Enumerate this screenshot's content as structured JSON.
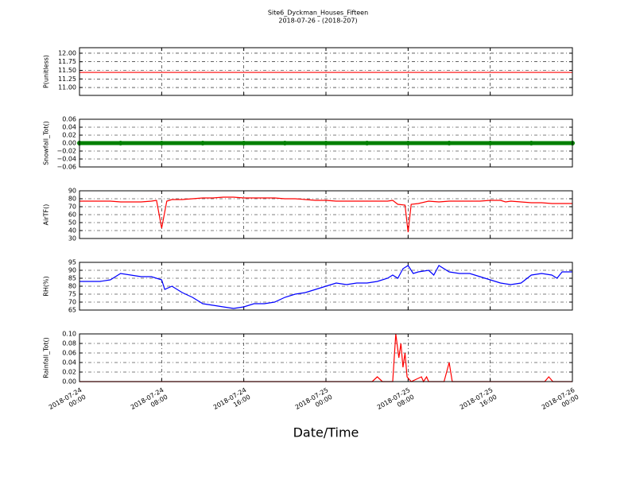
{
  "title": "Site6_Dyckman_Houses_Fifteen",
  "subtitle": "2018-07-26 - (2018-207)",
  "x_axis": {
    "label": "Date/Time",
    "xlim": [
      "2018-07-24 00:00",
      "2018-07-26 00:00"
    ],
    "xticks": [
      "2018-07-24 00:00",
      "2018-07-24 08:00",
      "2018-07-24 16:00",
      "2018-07-25 00:00",
      "2018-07-25 08:00",
      "2018-07-25 16:00",
      "2018-07-26 00:00"
    ]
  },
  "chart_data": [
    {
      "type": "line",
      "ylabel": "P(unitless)",
      "color": "#ff0000",
      "grid": true,
      "ylim": [
        10.77,
        12.16
      ],
      "yticks": [
        {
          "value": 11,
          "label": "11.00"
        },
        {
          "value": 11.25,
          "label": "11.25"
        },
        {
          "value": 11.5,
          "label": "11.50"
        },
        {
          "value": 11.75,
          "label": "11.75"
        },
        {
          "value": 12,
          "label": "12.00"
        }
      ],
      "x": [
        "2018-07-24 00:00",
        "2018-07-26 00:00"
      ],
      "values": [
        11.44,
        11.44
      ]
    },
    {
      "type": "line",
      "ylabel": "Snowfall_Tot()",
      "color": "#008000",
      "grid": true,
      "marker": "o",
      "ylim": [
        -0.06,
        0.06
      ],
      "yticks": [
        {
          "value": -0.06,
          "label": "−0.06"
        },
        {
          "value": -0.04,
          "label": "−0.04"
        },
        {
          "value": -0.02,
          "label": "−0.02"
        },
        {
          "value": 0,
          "label": "0.00"
        },
        {
          "value": 0.02,
          "label": "0.02"
        },
        {
          "value": 0.04,
          "label": "0.04"
        },
        {
          "value": 0.06,
          "label": "0.06"
        }
      ],
      "x": [
        "2018-07-24 00:00",
        "2018-07-24 04:00",
        "2018-07-24 08:00",
        "2018-07-24 12:00",
        "2018-07-24 16:00",
        "2018-07-24 20:00",
        "2018-07-25 00:00",
        "2018-07-25 04:00",
        "2018-07-25 08:00",
        "2018-07-25 12:00",
        "2018-07-25 16:00",
        "2018-07-25 20:00",
        "2018-07-26 00:00"
      ],
      "values": [
        0,
        0,
        0,
        0,
        0,
        0,
        0,
        0,
        0,
        0,
        0,
        0,
        0
      ]
    },
    {
      "type": "line",
      "ylabel": "AirTF()",
      "color": "#ff0000",
      "grid": true,
      "ylim": [
        30,
        90
      ],
      "yticks": [
        30,
        40,
        50,
        60,
        70,
        80,
        90
      ],
      "x": [
        "2018-07-24 00:00",
        "2018-07-24 01:00",
        "2018-07-24 02:00",
        "2018-07-24 03:00",
        "2018-07-24 04:00",
        "2018-07-24 05:00",
        "2018-07-24 06:00",
        "2018-07-24 07:00",
        "2018-07-24 07:30",
        "2018-07-24 08:00",
        "2018-07-24 08:30",
        "2018-07-24 09:00",
        "2018-07-24 10:00",
        "2018-07-24 11:00",
        "2018-07-24 12:00",
        "2018-07-24 13:00",
        "2018-07-24 14:00",
        "2018-07-24 15:00",
        "2018-07-24 16:00",
        "2018-07-24 17:00",
        "2018-07-24 18:00",
        "2018-07-24 19:00",
        "2018-07-24 20:00",
        "2018-07-24 21:00",
        "2018-07-24 22:00",
        "2018-07-24 23:00",
        "2018-07-25 00:00",
        "2018-07-25 01:00",
        "2018-07-25 02:00",
        "2018-07-25 03:00",
        "2018-07-25 04:00",
        "2018-07-25 05:00",
        "2018-07-25 06:00",
        "2018-07-25 06:30",
        "2018-07-25 07:00",
        "2018-07-25 07:42",
        "2018-07-25 08:00",
        "2018-07-25 08:18",
        "2018-07-25 09:00",
        "2018-07-25 10:00",
        "2018-07-25 11:00",
        "2018-07-25 12:00",
        "2018-07-25 13:00",
        "2018-07-25 14:00",
        "2018-07-25 15:00",
        "2018-07-25 16:00",
        "2018-07-25 17:00",
        "2018-07-25 17:30",
        "2018-07-25 18:00",
        "2018-07-25 19:00",
        "2018-07-25 20:00",
        "2018-07-25 21:00",
        "2018-07-25 22:00",
        "2018-07-25 23:00",
        "2018-07-26 00:00"
      ],
      "values": [
        77,
        77,
        77,
        77,
        76,
        76,
        76,
        77,
        78,
        43,
        77,
        79,
        79,
        80,
        81,
        81,
        82,
        82,
        81,
        81,
        81,
        81,
        80,
        80,
        79,
        78,
        78,
        77,
        77,
        77,
        77,
        77,
        77,
        78,
        73,
        72,
        38,
        73,
        74,
        77,
        76,
        77,
        77,
        77,
        77,
        78,
        78,
        76,
        77,
        76,
        75,
        75,
        74,
        74,
        74
      ]
    },
    {
      "type": "line",
      "ylabel": "RH(%)",
      "color": "#0000ff",
      "grid": true,
      "ylim": [
        65,
        95
      ],
      "yticks": [
        65,
        70,
        75,
        80,
        85,
        90,
        95
      ],
      "x": [
        "2018-07-24 00:00",
        "2018-07-24 02:00",
        "2018-07-24 03:00",
        "2018-07-24 04:00",
        "2018-07-24 05:00",
        "2018-07-24 06:00",
        "2018-07-24 07:00",
        "2018-07-24 08:00",
        "2018-07-24 08:18",
        "2018-07-24 09:00",
        "2018-07-24 10:00",
        "2018-07-24 11:00",
        "2018-07-24 12:00",
        "2018-07-24 13:00",
        "2018-07-24 14:00",
        "2018-07-24 15:00",
        "2018-07-24 16:00",
        "2018-07-24 17:00",
        "2018-07-24 18:00",
        "2018-07-24 19:00",
        "2018-07-24 20:00",
        "2018-07-24 21:00",
        "2018-07-24 22:00",
        "2018-07-24 23:00",
        "2018-07-25 00:00",
        "2018-07-25 01:00",
        "2018-07-25 02:00",
        "2018-07-25 03:00",
        "2018-07-25 04:00",
        "2018-07-25 05:00",
        "2018-07-25 06:00",
        "2018-07-25 06:30",
        "2018-07-25 07:00",
        "2018-07-25 07:30",
        "2018-07-25 08:00",
        "2018-07-25 08:30",
        "2018-07-25 09:00",
        "2018-07-25 10:00",
        "2018-07-25 10:30",
        "2018-07-25 11:00",
        "2018-07-25 12:00",
        "2018-07-25 13:00",
        "2018-07-25 14:00",
        "2018-07-25 15:00",
        "2018-07-25 16:00",
        "2018-07-25 17:00",
        "2018-07-25 18:00",
        "2018-07-25 19:00",
        "2018-07-25 20:00",
        "2018-07-25 21:00",
        "2018-07-25 22:00",
        "2018-07-25 22:30",
        "2018-07-25 23:00",
        "2018-07-26 00:00"
      ],
      "values": [
        83,
        83,
        84,
        88,
        87,
        86,
        86,
        84,
        78,
        80,
        76,
        73,
        69,
        68,
        67,
        66,
        67,
        69,
        69,
        70,
        73,
        75,
        76,
        78,
        80,
        82,
        81,
        82,
        82,
        83,
        85,
        87,
        85,
        91,
        93,
        88,
        89,
        90,
        87,
        93,
        89,
        88,
        88,
        86,
        84,
        82,
        81,
        82,
        87,
        88,
        87,
        85,
        89,
        89
      ]
    },
    {
      "type": "line",
      "ylabel": "Rainfall_Tot()",
      "color": "#ff0000",
      "grid": true,
      "ylim": [
        0,
        0.1
      ],
      "yticks": [
        {
          "value": 0,
          "label": "0.00"
        },
        {
          "value": 0.02,
          "label": "0.02"
        },
        {
          "value": 0.04,
          "label": "0.04"
        },
        {
          "value": 0.06,
          "label": "0.06"
        },
        {
          "value": 0.08,
          "label": "0.08"
        },
        {
          "value": 0.1,
          "label": "0.10"
        }
      ],
      "x": [
        "2018-07-24 00:00",
        "2018-07-25 04:30",
        "2018-07-25 05:00",
        "2018-07-25 05:30",
        "2018-07-25 06:30",
        "2018-07-25 06:48",
        "2018-07-25 07:06",
        "2018-07-25 07:18",
        "2018-07-25 07:30",
        "2018-07-25 07:42",
        "2018-07-25 07:54",
        "2018-07-25 08:18",
        "2018-07-25 09:18",
        "2018-07-25 09:30",
        "2018-07-25 09:48",
        "2018-07-25 10:00",
        "2018-07-25 11:30",
        "2018-07-25 12:00",
        "2018-07-25 12:18",
        "2018-07-25 21:18",
        "2018-07-25 21:42",
        "2018-07-25 22:06",
        "2018-07-26 00:00"
      ],
      "values": [
        0,
        0,
        0.01,
        0,
        0,
        0.1,
        0.05,
        0.08,
        0.03,
        0.06,
        0.01,
        0,
        0.01,
        0,
        0.01,
        0,
        0,
        0.04,
        0,
        0,
        0.01,
        0,
        0
      ]
    }
  ]
}
